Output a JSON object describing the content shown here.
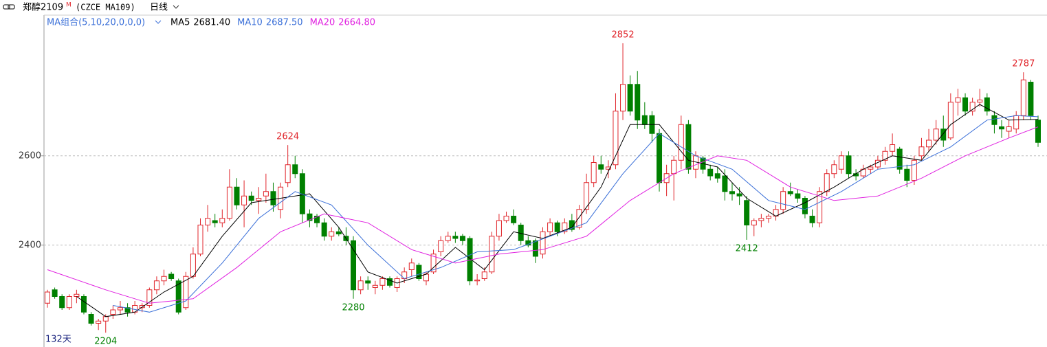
{
  "header": {
    "name": "郑醇2109",
    "badge": "M",
    "code": "(CZCE MA109)",
    "period": "日线"
  },
  "chart_data": {
    "type": "candlestick",
    "indicator_label": "MA组合(5,10,20,0,0,0)",
    "days_label": "132天",
    "up_color": "#e0242a",
    "down_color": "#008000",
    "ylim": [
      2175,
      2915
    ],
    "yticks": [
      2400,
      2600
    ],
    "grid": true,
    "candles": [
      [
        2270,
        2300,
        2260,
        2295
      ],
      [
        2300,
        2305,
        2280,
        2285
      ],
      [
        2285,
        2290,
        2255,
        2260
      ],
      [
        2260,
        2290,
        2255,
        2285
      ],
      [
        2285,
        2300,
        2270,
        2290
      ],
      [
        2285,
        2290,
        2245,
        2250
      ],
      [
        2245,
        2250,
        2220,
        2225
      ],
      [
        2225,
        2235,
        2210,
        2230
      ],
      [
        2230,
        2245,
        2204,
        2240
      ],
      [
        2245,
        2265,
        2235,
        2255
      ],
      [
        2255,
        2275,
        2245,
        2260
      ],
      [
        2260,
        2270,
        2240,
        2250
      ],
      [
        2250,
        2275,
        2245,
        2265
      ],
      [
        2260,
        2270,
        2250,
        2265
      ],
      [
        2265,
        2305,
        2260,
        2300
      ],
      [
        2300,
        2330,
        2290,
        2320
      ],
      [
        2320,
        2345,
        2310,
        2330
      ],
      [
        2335,
        2340,
        2320,
        2325
      ],
      [
        2320,
        2325,
        2245,
        2250
      ],
      [
        2260,
        2340,
        2255,
        2330
      ],
      [
        2330,
        2395,
        2325,
        2380
      ],
      [
        2380,
        2460,
        2375,
        2445
      ],
      [
        2445,
        2490,
        2430,
        2460
      ],
      [
        2455,
        2470,
        2440,
        2450
      ],
      [
        2450,
        2480,
        2440,
        2460
      ],
      [
        2460,
        2570,
        2455,
        2530
      ],
      [
        2530,
        2550,
        2480,
        2490
      ],
      [
        2490,
        2545,
        2440,
        2510
      ],
      [
        2510,
        2520,
        2490,
        2500
      ],
      [
        2500,
        2530,
        2470,
        2505
      ],
      [
        2510,
        2560,
        2495,
        2520
      ],
      [
        2520,
        2540,
        2475,
        2490
      ],
      [
        2480,
        2540,
        2460,
        2530
      ],
      [
        2540,
        2624,
        2530,
        2580
      ],
      [
        2580,
        2600,
        2550,
        2560
      ],
      [
        2560,
        2570,
        2450,
        2470
      ],
      [
        2470,
        2480,
        2440,
        2455
      ],
      [
        2465,
        2470,
        2440,
        2450
      ],
      [
        2450,
        2460,
        2410,
        2420
      ],
      [
        2420,
        2440,
        2410,
        2430
      ],
      [
        2430,
        2440,
        2420,
        2425
      ],
      [
        2420,
        2440,
        2400,
        2410
      ],
      [
        2410,
        2420,
        2280,
        2300
      ],
      [
        2300,
        2330,
        2290,
        2320
      ],
      [
        2320,
        2330,
        2300,
        2315
      ],
      [
        2305,
        2320,
        2290,
        2310
      ],
      [
        2310,
        2330,
        2300,
        2325
      ],
      [
        2325,
        2330,
        2305,
        2310
      ],
      [
        2305,
        2330,
        2295,
        2325
      ],
      [
        2325,
        2350,
        2315,
        2340
      ],
      [
        2345,
        2370,
        2330,
        2360
      ],
      [
        2355,
        2360,
        2320,
        2325
      ],
      [
        2320,
        2340,
        2310,
        2335
      ],
      [
        2340,
        2390,
        2335,
        2380
      ],
      [
        2385,
        2420,
        2375,
        2410
      ],
      [
        2410,
        2430,
        2405,
        2420
      ],
      [
        2420,
        2430,
        2405,
        2415
      ],
      [
        2420,
        2425,
        2400,
        2410
      ],
      [
        2415,
        2420,
        2310,
        2320
      ],
      [
        2320,
        2335,
        2310,
        2322
      ],
      [
        2325,
        2350,
        2320,
        2340
      ],
      [
        2340,
        2430,
        2335,
        2420
      ],
      [
        2420,
        2470,
        2410,
        2455
      ],
      [
        2455,
        2475,
        2450,
        2465
      ],
      [
        2465,
        2480,
        2445,
        2450
      ],
      [
        2445,
        2450,
        2400,
        2410
      ],
      [
        2410,
        2420,
        2395,
        2400
      ],
      [
        2410,
        2415,
        2360,
        2375
      ],
      [
        2380,
        2440,
        2370,
        2430
      ],
      [
        2430,
        2460,
        2420,
        2450
      ],
      [
        2450,
        2455,
        2420,
        2430
      ],
      [
        2430,
        2460,
        2425,
        2450
      ],
      [
        2455,
        2470,
        2430,
        2435
      ],
      [
        2440,
        2490,
        2435,
        2480
      ],
      [
        2480,
        2560,
        2470,
        2540
      ],
      [
        2540,
        2600,
        2530,
        2585
      ],
      [
        2580,
        2600,
        2560,
        2570
      ],
      [
        2570,
        2590,
        2550,
        2575
      ],
      [
        2580,
        2740,
        2570,
        2700
      ],
      [
        2700,
        2852,
        2680,
        2760
      ],
      [
        2760,
        2780,
        2690,
        2700
      ],
      [
        2760,
        2790,
        2660,
        2680
      ],
      [
        2690,
        2720,
        2660,
        2670
      ],
      [
        2690,
        2700,
        2630,
        2650
      ],
      [
        2650,
        2660,
        2520,
        2540
      ],
      [
        2540,
        2580,
        2510,
        2560
      ],
      [
        2560,
        2600,
        2500,
        2590
      ],
      [
        2590,
        2690,
        2570,
        2670
      ],
      [
        2670,
        2680,
        2560,
        2570
      ],
      [
        2570,
        2610,
        2550,
        2600
      ],
      [
        2595,
        2600,
        2560,
        2570
      ],
      [
        2570,
        2580,
        2545,
        2555
      ],
      [
        2560,
        2575,
        2540,
        2550
      ],
      [
        2555,
        2570,
        2500,
        2520
      ],
      [
        2520,
        2540,
        2500,
        2515
      ],
      [
        2515,
        2530,
        2490,
        2510
      ],
      [
        2500,
        2510,
        2412,
        2445
      ],
      [
        2445,
        2460,
        2420,
        2455
      ],
      [
        2455,
        2470,
        2440,
        2460
      ],
      [
        2460,
        2470,
        2450,
        2465
      ],
      [
        2465,
        2490,
        2455,
        2480
      ],
      [
        2480,
        2530,
        2470,
        2520
      ],
      [
        2520,
        2540,
        2510,
        2515
      ],
      [
        2515,
        2525,
        2495,
        2505
      ],
      [
        2505,
        2510,
        2460,
        2470
      ],
      [
        2465,
        2480,
        2440,
        2450
      ],
      [
        2450,
        2530,
        2440,
        2520
      ],
      [
        2520,
        2570,
        2510,
        2560
      ],
      [
        2560,
        2590,
        2550,
        2580
      ],
      [
        2570,
        2610,
        2560,
        2600
      ],
      [
        2600,
        2610,
        2550,
        2560
      ],
      [
        2560,
        2570,
        2545,
        2555
      ],
      [
        2555,
        2580,
        2550,
        2570
      ],
      [
        2570,
        2580,
        2560,
        2575
      ],
      [
        2575,
        2600,
        2570,
        2590
      ],
      [
        2590,
        2620,
        2580,
        2610
      ],
      [
        2610,
        2650,
        2600,
        2625
      ],
      [
        2615,
        2620,
        2560,
        2570
      ],
      [
        2570,
        2580,
        2530,
        2545
      ],
      [
        2545,
        2600,
        2535,
        2590
      ],
      [
        2600,
        2640,
        2590,
        2620
      ],
      [
        2620,
        2660,
        2610,
        2635
      ],
      [
        2635,
        2680,
        2625,
        2660
      ],
      [
        2660,
        2690,
        2620,
        2635
      ],
      [
        2640,
        2740,
        2635,
        2720
      ],
      [
        2720,
        2750,
        2690,
        2730
      ],
      [
        2730,
        2740,
        2690,
        2700
      ],
      [
        2700,
        2730,
        2690,
        2720
      ],
      [
        2720,
        2750,
        2710,
        2725
      ],
      [
        2730,
        2740,
        2690,
        2700
      ],
      [
        2690,
        2700,
        2650,
        2670
      ],
      [
        2665,
        2680,
        2640,
        2660
      ],
      [
        2655,
        2680,
        2640,
        2665
      ],
      [
        2660,
        2700,
        2650,
        2690
      ],
      [
        2690,
        2787,
        2680,
        2770
      ],
      [
        2765,
        2770,
        2680,
        2690
      ],
      [
        2680,
        2690,
        2620,
        2630
      ]
    ],
    "marked_highs": [
      33,
      79,
      134
    ],
    "marked_lows": [
      8,
      42,
      96
    ],
    "series": [
      {
        "name": "MA5",
        "color": "#000000",
        "latest": 2681.4,
        "latest_label": "2681.40",
        "x": [
          4,
          8,
          12,
          16,
          20,
          24,
          28,
          32,
          36,
          40,
          44,
          48,
          52,
          56,
          60,
          64,
          68,
          72,
          76,
          80,
          84,
          88,
          92,
          96,
          100,
          104,
          108,
          112,
          116,
          120,
          124,
          128,
          132,
          136
        ],
        "values": [
          2285,
          2240,
          2250,
          2295,
          2330,
          2420,
          2495,
          2505,
          2515,
          2440,
          2340,
          2315,
          2335,
          2395,
          2345,
          2430,
          2415,
          2440,
          2530,
          2670,
          2670,
          2590,
          2575,
          2505,
          2465,
          2495,
          2530,
          2570,
          2600,
          2590,
          2670,
          2715,
          2680,
          2681.4
        ]
      },
      {
        "name": "MA10",
        "color": "#3a6fd8",
        "latest": 2687.5,
        "latest_label": "2687.50",
        "x": [
          9,
          14,
          19,
          24,
          29,
          34,
          39,
          44,
          49,
          54,
          59,
          64,
          69,
          74,
          79,
          84,
          89,
          94,
          99,
          104,
          109,
          114,
          119,
          124,
          129,
          133,
          136
        ],
        "values": [
          2265,
          2250,
          2275,
          2360,
          2460,
          2520,
          2490,
          2400,
          2325,
          2350,
          2385,
          2390,
          2420,
          2450,
          2560,
          2650,
          2600,
          2570,
          2500,
          2480,
          2520,
          2570,
          2580,
          2620,
          2680,
          2690,
          2687.5
        ]
      },
      {
        "name": "MA20",
        "color": "#e020e0",
        "latest": 2664.8,
        "latest_label": "2664.80",
        "x": [
          0,
          8,
          14,
          20,
          26,
          32,
          38,
          44,
          50,
          56,
          62,
          68,
          74,
          80,
          86,
          92,
          96,
          102,
          108,
          114,
          120,
          126,
          132,
          136
        ],
        "values": [
          2345,
          2300,
          2270,
          2280,
          2350,
          2430,
          2470,
          2450,
          2390,
          2360,
          2380,
          2390,
          2420,
          2500,
          2560,
          2600,
          2590,
          2530,
          2500,
          2510,
          2550,
          2600,
          2640,
          2664.8
        ]
      }
    ]
  }
}
